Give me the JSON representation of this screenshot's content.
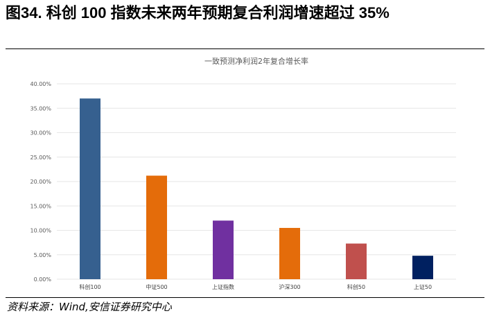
{
  "figure": {
    "title": "图34. 科创 100 指数未来两年预期复合利润增速超过 35%",
    "source": "资料来源：Wind,安信证券研究中心"
  },
  "chart_data": {
    "type": "bar",
    "title": "一致预测净利润2年复合增长率",
    "categories": [
      "科创100",
      "中证500",
      "上证指数",
      "沪深300",
      "科创50",
      "上证50"
    ],
    "values": [
      37.0,
      21.2,
      12.0,
      10.5,
      7.3,
      4.8
    ],
    "colors": [
      "#36608f",
      "#e46c0a",
      "#7030a0",
      "#e46c0a",
      "#c0504d",
      "#002060"
    ],
    "ylim": [
      0,
      40
    ],
    "yticks": [
      "0.00%",
      "5.00%",
      "10.00%",
      "15.00%",
      "20.00%",
      "25.00%",
      "30.00%",
      "35.00%",
      "40.00%"
    ],
    "xlabel": "",
    "ylabel": "",
    "grid": true,
    "legend": "none"
  }
}
